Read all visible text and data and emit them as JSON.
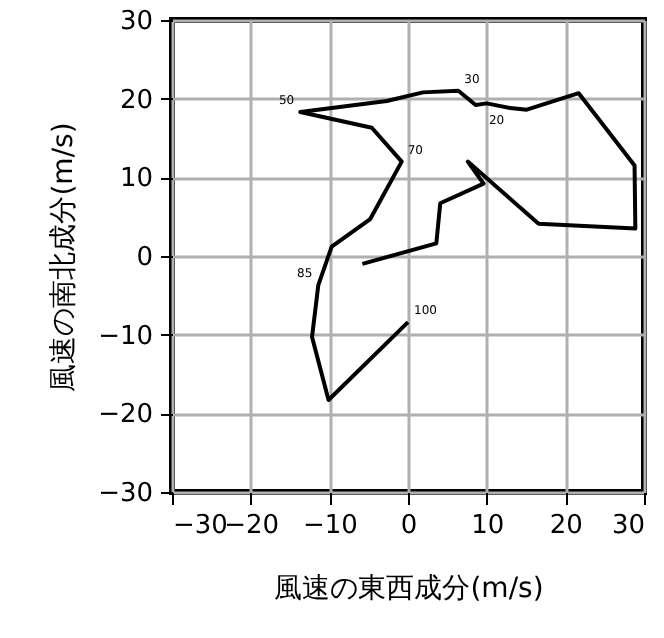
{
  "chart_data": {
    "type": "line",
    "xlabel": "風速の東西成分(m/s)",
    "ylabel": "風速の南北成分(m/s)",
    "x": [
      0,
      -10.1,
      -12.2,
      -11.4,
      -9.7,
      -4.8,
      -0.8,
      -4.6,
      -13.7,
      -2.7,
      1.9,
      6.4,
      8.6,
      10,
      13,
      15.1,
      21.7,
      28.8,
      28.9,
      16.6,
      7.6,
      9.6,
      4.1,
      3.6,
      -5.8
    ],
    "series": [
      {
        "color": "#000000",
        "values": [
          -8.4,
          -18.3,
          -10.3,
          -3.7,
          1.2,
          4.7,
          12,
          16.3,
          18.3,
          19.7,
          20.8,
          21,
          19.2,
          19.4,
          18.8,
          18.6,
          20.7,
          11.5,
          3.5,
          4.1,
          12,
          9.2,
          6.7,
          1.6,
          -1
        ]
      }
    ],
    "annotations": [
      {
        "text": "100",
        "x": 0,
        "y": -8.4
      },
      {
        "text": "85",
        "x": -11.4,
        "y": -3.7
      },
      {
        "text": "70",
        "x": -0.8,
        "y": 12
      },
      {
        "text": "50",
        "x": -13.7,
        "y": 18.3
      },
      {
        "text": "30",
        "x": 6.4,
        "y": 21
      },
      {
        "text": "20",
        "x": 13,
        "y": 18.8
      }
    ],
    "xlim": [
      -30,
      30
    ],
    "ylim": [
      -30,
      30
    ],
    "xticks": [
      -30,
      -20,
      -10,
      0,
      10,
      20,
      30
    ],
    "yticks": [
      -30,
      -20,
      -10,
      0,
      10,
      20,
      30
    ],
    "grid": true,
    "marker": "none",
    "line_style": "solid"
  }
}
